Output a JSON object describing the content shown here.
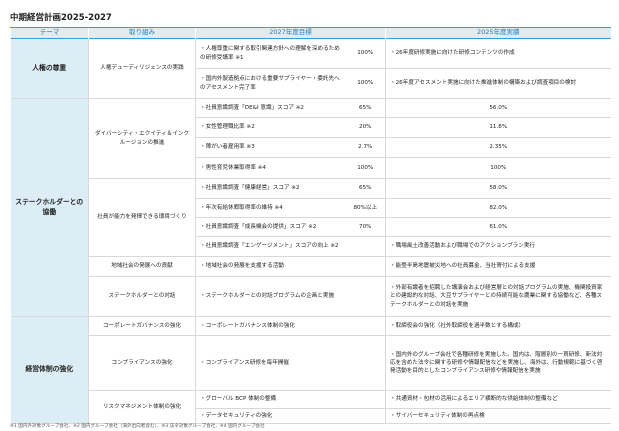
{
  "title": "中期経営計画2025-2027",
  "header": {
    "columns": [
      "テーマ",
      "取り組み",
      "2027年度目標",
      "2025年度実績"
    ]
  },
  "themes": [
    {
      "name": "人権の尊重",
      "initiatives": [
        {
          "name": "人権デューディリジェンスの実践",
          "items": [
            {
              "target": "人権尊重に関する取引関連方針への理解を深めるための研修受講率 ※1",
              "value": "100%",
              "result": "26年度研修実施に向けた研修コンテンツの作成"
            },
            {
              "target": "国内外製造拠点における重要サプライヤー・委託先へのアセスメント完了率",
              "value": "100%",
              "result": "26年度アセスメント実施に向けた推進体制の構築および調査項目の検討"
            }
          ]
        }
      ]
    },
    {
      "name": "ステークホルダーとの協働",
      "initiatives": [
        {
          "name": "ダイバーシティ・エクイティ＆インクルージョンの推進",
          "items": [
            {
              "target": "社員意識調査「DE&I 意識」スコア ※2",
              "value": "65%",
              "result": "56.0%"
            },
            {
              "target": "女性管理職比率 ※2",
              "value": "20%",
              "result": "11.8%"
            },
            {
              "target": "障がい者雇用率 ※3",
              "value": "2.7%",
              "result": "2.35%"
            },
            {
              "target": "男性育児休業取得率 ※4",
              "value": "100%",
              "result": "100%"
            }
          ]
        },
        {
          "name": "社員が能力を発揮できる環境づくり",
          "items": [
            {
              "target": "社員意識調査「健康経営」スコア ※2",
              "value": "65%",
              "result": "58.0%"
            },
            {
              "target": "年次有給休暇取得率の維持 ※4",
              "value": "80%以上",
              "result": "82.0%"
            },
            {
              "target": "社員意識調査「成長機会の提供」スコア ※2",
              "value": "70%",
              "result": "61.0%"
            },
            {
              "target": "社員意識調査「エンゲージメント」スコアの向上 ※2",
              "result": "職場風土改善活動および職場でのアクションプラン実行"
            }
          ]
        },
        {
          "name": "地域社会の発展への貢献",
          "items": [
            {
              "target": "地域社会の発展を支援する活動",
              "result": "能登半島地震被災地への社員募金、当社寄付による支援"
            }
          ]
        },
        {
          "name": "ステークホルダーとの対話",
          "items": [
            {
              "target": "ステークホルダーとの対話プログラムの企画と実施",
              "result": "外部有識者を招聘した講演会および経営層との対話プログラムの実施、機関投資家との建設的な対話、大豆サプライヤーとの持続可能な農業に関する協働など、各種ステークホルダーとの対話を実施"
            }
          ]
        }
      ]
    },
    {
      "name": "経営体制の強化",
      "initiatives": [
        {
          "name": "コーポレートガバナンスの強化",
          "items": [
            {
              "target": "コーポレートガバナンス体制の強化",
              "result": "取締役会の強化（社外取締役を過半数とする構成）"
            }
          ]
        },
        {
          "name": "コンプライアンスの強化",
          "items": [
            {
              "target": "コンプライアンス研修を毎年開催",
              "result": "国内外のグループ会社で各種研修を実施した。国内は、階層別の一貫研修、新法対応を含めた法令に関する研修や情報配信などを実施し、海外は、行動規範に基づく啓発活動を目的としたコンプライアンス研修や情報配信を実施"
            }
          ]
        },
        {
          "name": "リスクマネジメント体制の強化",
          "items": [
            {
              "target": "グローバル BCP 体制の整備",
              "result": "共通資材・包材の活用によるエリア横断的な供給体制の整備など"
            },
            {
              "target": "データセキュリティの強化",
              "result": "サイバーセキュリティ体制の再点検"
            }
          ]
        }
      ]
    }
  ],
  "footnote": "※1 国内外対象グループ会社、※2 国内グループ会社（海外出向者含む）、※3 法令対象グループ会社、※4 国内グループ会社"
}
